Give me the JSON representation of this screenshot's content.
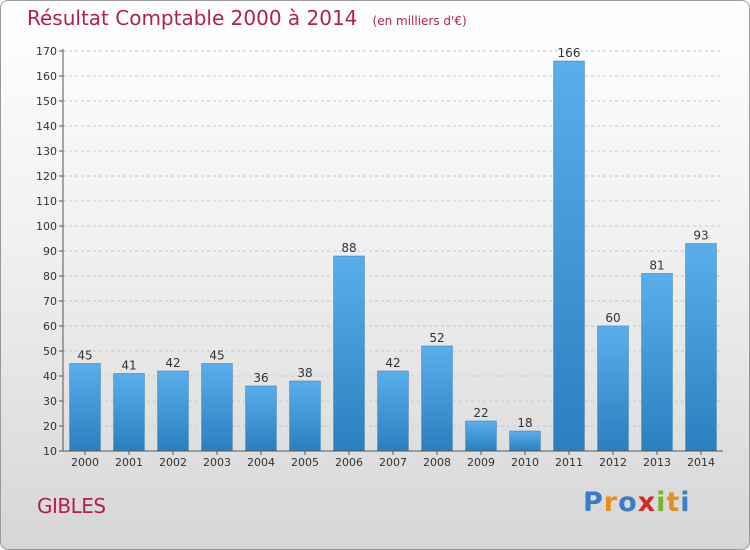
{
  "chart_data": {
    "type": "bar",
    "title": "Résultat Comptable 2000 à 2014",
    "subtitle": "(en milliers d'€)",
    "categories": [
      "2000",
      "2001",
      "2002",
      "2003",
      "2004",
      "2005",
      "2006",
      "2007",
      "2008",
      "2009",
      "2010",
      "2011",
      "2012",
      "2013",
      "2014"
    ],
    "values": [
      45,
      41,
      42,
      45,
      36,
      38,
      88,
      42,
      52,
      22,
      18,
      166,
      60,
      81,
      93
    ],
    "ylim": [
      10,
      170
    ],
    "yticks": [
      10,
      20,
      30,
      40,
      50,
      60,
      70,
      80,
      90,
      100,
      110,
      120,
      130,
      140,
      150,
      160,
      170
    ],
    "grid": true,
    "xlabel": "",
    "ylabel": ""
  },
  "commune": "GIBLES",
  "logo": {
    "text": [
      "P",
      "r",
      "o",
      "x",
      "i",
      "t",
      "i"
    ],
    "colors": [
      "#3b7dc4",
      "#e8901c",
      "#3b7dc4",
      "#d02a2a",
      "#7ab42b",
      "#e8901c",
      "#3b7dc4"
    ]
  },
  "colors": {
    "title": "#b3204a",
    "bar_light": "#5aaeea",
    "bar_dark": "#2c7fbf",
    "grid": "#c9c9c9"
  }
}
